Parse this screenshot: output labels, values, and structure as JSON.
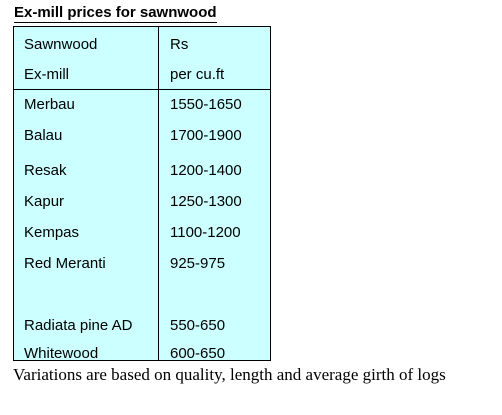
{
  "title": "Ex-mill prices for sawnwood",
  "table": {
    "header": {
      "col1_line1": "Sawnwood",
      "col1_line2": "Ex-mill",
      "col2_line1": "Rs",
      "col2_line2": "per cu.ft"
    },
    "rows": [
      {
        "species": "Merbau",
        "price": "1550-1650"
      },
      {
        "species": "Balau",
        "price": "1700-1900"
      },
      {
        "species": "Resak",
        "price": "1200-1400"
      },
      {
        "species": "Kapur",
        "price": "1250-1300"
      },
      {
        "species": "Kempas",
        "price": "1100-1200"
      },
      {
        "species": "Red Meranti",
        "price": "925-975"
      },
      {
        "species": "Radiata pine AD",
        "price": "550-650"
      },
      {
        "species": "Whitewood",
        "price": "600-650"
      }
    ],
    "background_color": "#ccffff"
  },
  "footnote": "Variations are based on quality, length and average girth of logs"
}
